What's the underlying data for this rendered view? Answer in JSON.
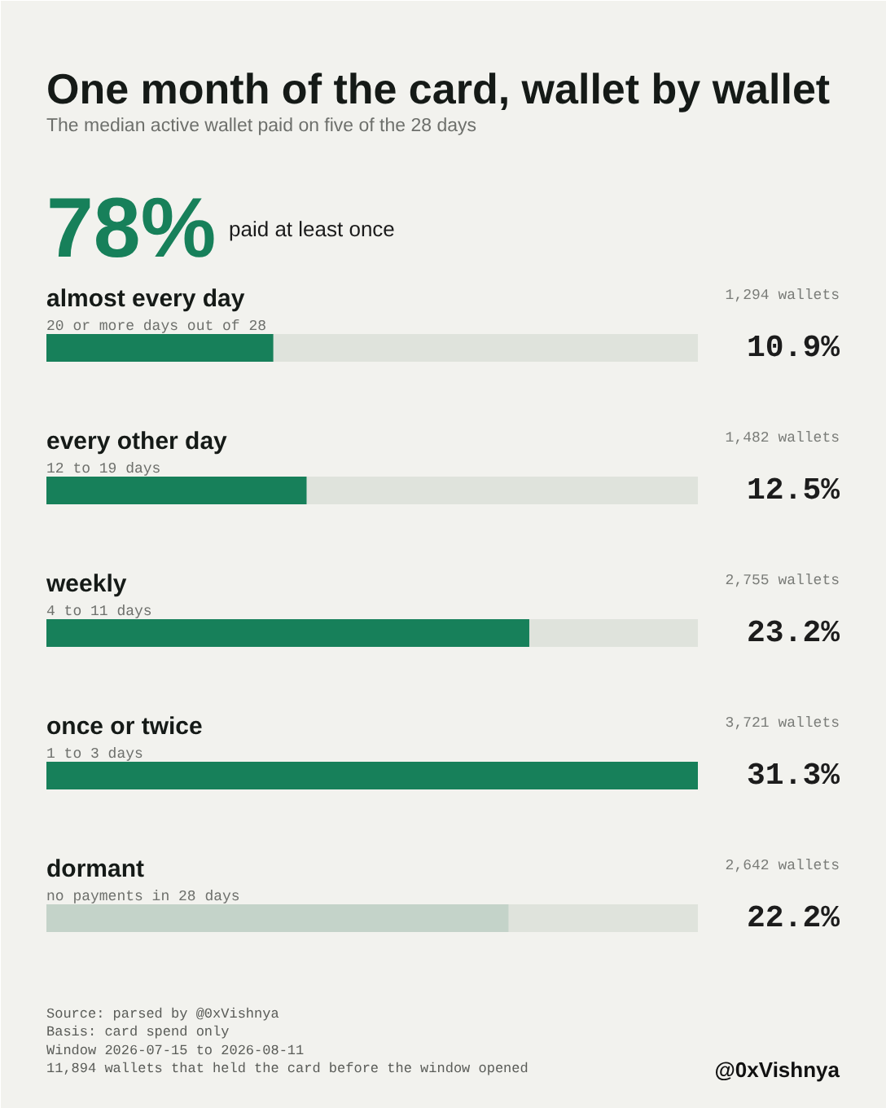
{
  "chart_data": {
    "type": "bar",
    "orientation": "horizontal",
    "title": "One month of the card, wallet by wallet",
    "subtitle": "The median active wallet paid on five of the 28 days",
    "categories": [
      "almost every day",
      "every other day",
      "weekly",
      "once or twice",
      "dormant"
    ],
    "values": [
      10.9,
      12.5,
      23.2,
      31.3,
      22.2
    ],
    "colors": [
      "#17805a",
      "#17805a",
      "#17805a",
      "#17805a",
      "#c4d3c9"
    ],
    "value_labels": [
      "10.9%",
      "12.5%",
      "23.2%",
      "31.3%",
      "22.2%"
    ],
    "annotations": [
      "78%",
      "paid at least once",
      "20 or more days out of 28",
      "1,294 wallets",
      "12 to 19 days",
      "1,482 wallets",
      "4 to 11 days",
      "2,755 wallets",
      "1 to 3 days",
      "3,721 wallets",
      "no payments in 28 days",
      "2,642 wallets",
      "Source: parsed by @0xVishnya",
      "Basis: card spend only",
      "Window 2026-07-15 to 2026-08-11",
      "11,894 wallets that held the card before the window opened",
      "@0xVishnya"
    ]
  }
}
